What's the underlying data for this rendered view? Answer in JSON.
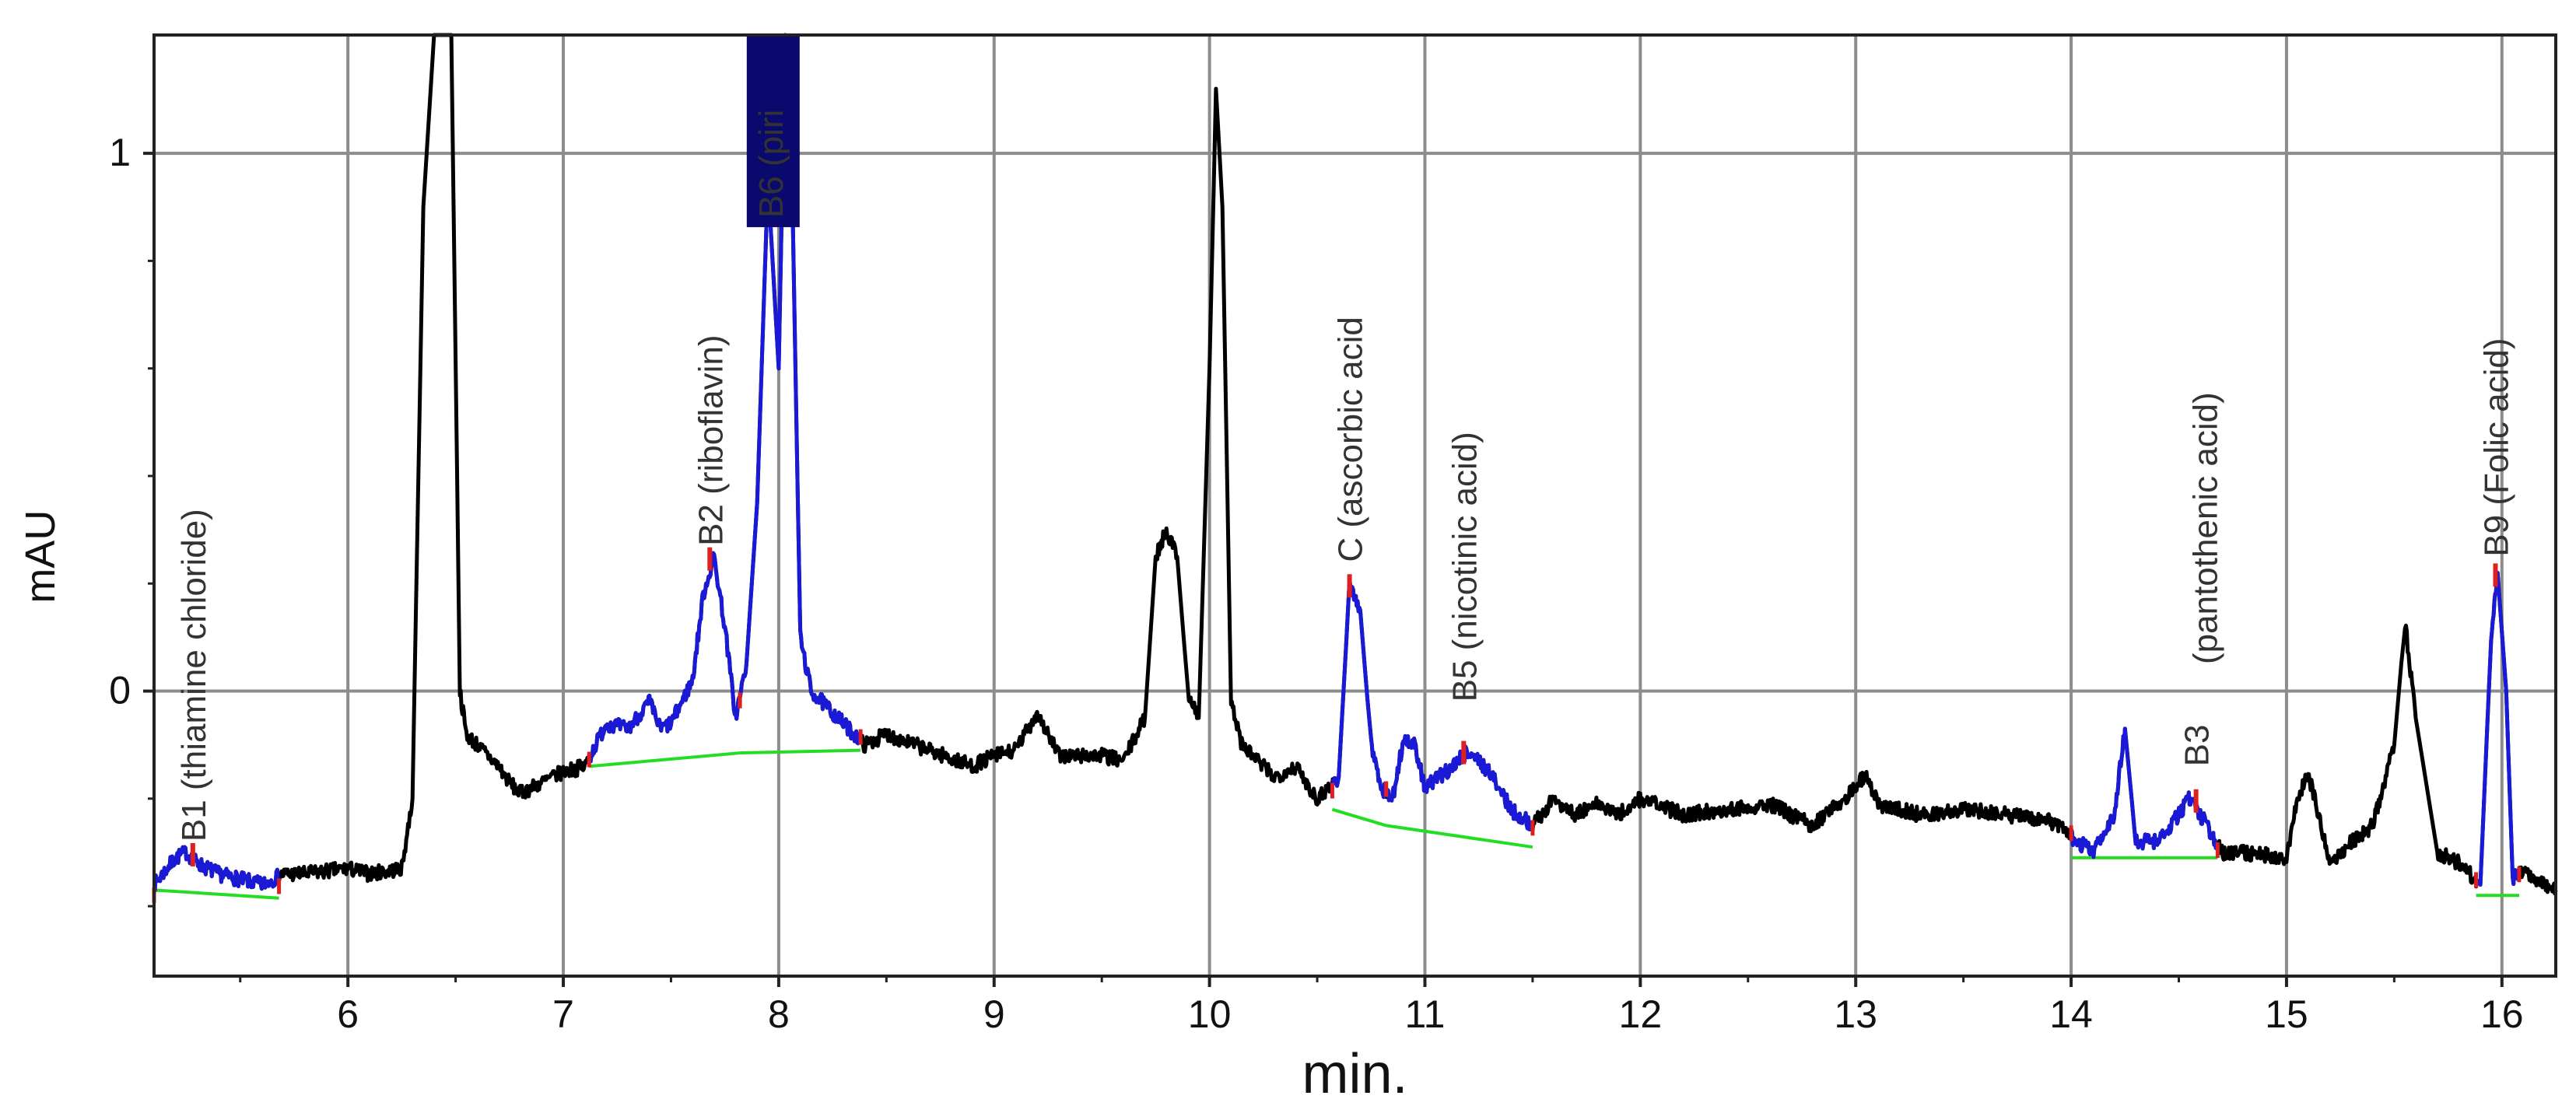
{
  "chart_data": {
    "type": "line",
    "xlabel": "min.",
    "ylabel": "mAU",
    "xlim": [
      5.1,
      16.25
    ],
    "ylim": [
      -0.53,
      1.22
    ],
    "x_ticks": [
      6,
      7,
      8,
      9,
      10,
      11,
      12,
      13,
      14,
      15,
      16
    ],
    "y_ticks": [
      0,
      1
    ],
    "grid": true,
    "colors": {
      "trace": "#000000",
      "peak_region": "#1a1ad6",
      "baseline": "#22dd22",
      "marker": "#e02020",
      "highlight_box": "#0a0a6e",
      "grid": "#8c8c8c"
    },
    "series": [
      {
        "points": [
          [
            5.1,
            -0.36
          ],
          [
            5.2,
            -0.31
          ],
          [
            5.25,
            -0.3
          ],
          [
            5.3,
            -0.32
          ],
          [
            5.4,
            -0.34
          ],
          [
            5.5,
            -0.35
          ],
          [
            5.6,
            -0.36
          ],
          [
            5.7,
            -0.34
          ],
          [
            5.8,
            -0.34
          ],
          [
            6.0,
            -0.33
          ],
          [
            6.1,
            -0.34
          ],
          [
            6.25,
            -0.33
          ],
          [
            6.3,
            -0.2
          ],
          [
            6.35,
            0.9
          ],
          [
            6.4,
            1.22
          ],
          [
            6.48,
            1.22
          ],
          [
            6.52,
            0.0
          ],
          [
            6.55,
            -0.08
          ],
          [
            6.6,
            -0.1
          ],
          [
            6.7,
            -0.14
          ],
          [
            6.75,
            -0.17
          ],
          [
            6.8,
            -0.19
          ],
          [
            6.9,
            -0.17
          ],
          [
            7.0,
            -0.15
          ],
          [
            7.1,
            -0.14
          ],
          [
            7.15,
            -0.1
          ],
          [
            7.2,
            -0.06
          ],
          [
            7.3,
            -0.07
          ],
          [
            7.4,
            -0.02
          ],
          [
            7.45,
            -0.07
          ],
          [
            7.5,
            -0.06
          ],
          [
            7.6,
            0.02
          ],
          [
            7.65,
            0.18
          ],
          [
            7.7,
            0.25
          ],
          [
            7.75,
            0.12
          ],
          [
            7.8,
            -0.05
          ],
          [
            7.85,
            0.05
          ],
          [
            7.9,
            0.35
          ],
          [
            7.95,
            0.95
          ],
          [
            8.0,
            0.6
          ],
          [
            8.03,
            1.22
          ],
          [
            8.06,
            1.0
          ],
          [
            8.1,
            0.1
          ],
          [
            8.15,
            0.0
          ],
          [
            8.2,
            -0.02
          ],
          [
            8.3,
            -0.06
          ],
          [
            8.4,
            -0.1
          ],
          [
            8.5,
            -0.08
          ],
          [
            8.7,
            -0.11
          ],
          [
            8.9,
            -0.14
          ],
          [
            9.0,
            -0.12
          ],
          [
            9.1,
            -0.11
          ],
          [
            9.2,
            -0.04
          ],
          [
            9.3,
            -0.12
          ],
          [
            9.5,
            -0.12
          ],
          [
            9.6,
            -0.13
          ],
          [
            9.7,
            -0.05
          ],
          [
            9.75,
            0.25
          ],
          [
            9.8,
            0.3
          ],
          [
            9.85,
            0.25
          ],
          [
            9.9,
            0.0
          ],
          [
            9.95,
            -0.05
          ],
          [
            10.0,
            0.6
          ],
          [
            10.03,
            1.12
          ],
          [
            10.06,
            0.9
          ],
          [
            10.1,
            -0.02
          ],
          [
            10.15,
            -0.1
          ],
          [
            10.3,
            -0.16
          ],
          [
            10.4,
            -0.14
          ],
          [
            10.5,
            -0.2
          ],
          [
            10.6,
            -0.16
          ],
          [
            10.65,
            0.2
          ],
          [
            10.7,
            0.15
          ],
          [
            10.75,
            -0.1
          ],
          [
            10.8,
            -0.18
          ],
          [
            10.85,
            -0.2
          ],
          [
            10.9,
            -0.09
          ],
          [
            10.95,
            -0.1
          ],
          [
            11.0,
            -0.18
          ],
          [
            11.1,
            -0.15
          ],
          [
            11.2,
            -0.11
          ],
          [
            11.3,
            -0.15
          ],
          [
            11.4,
            -0.22
          ],
          [
            11.5,
            -0.25
          ],
          [
            11.6,
            -0.2
          ],
          [
            11.7,
            -0.23
          ],
          [
            11.8,
            -0.21
          ],
          [
            11.9,
            -0.23
          ],
          [
            12.0,
            -0.2
          ],
          [
            12.2,
            -0.23
          ],
          [
            12.4,
            -0.22
          ],
          [
            12.6,
            -0.21
          ],
          [
            12.8,
            -0.25
          ],
          [
            13.0,
            -0.18
          ],
          [
            13.05,
            -0.15
          ],
          [
            13.1,
            -0.21
          ],
          [
            13.3,
            -0.23
          ],
          [
            13.5,
            -0.22
          ],
          [
            13.7,
            -0.23
          ],
          [
            13.9,
            -0.24
          ],
          [
            14.0,
            -0.27
          ],
          [
            14.1,
            -0.3
          ],
          [
            14.2,
            -0.23
          ],
          [
            14.25,
            -0.07
          ],
          [
            14.3,
            -0.28
          ],
          [
            14.4,
            -0.28
          ],
          [
            14.5,
            -0.23
          ],
          [
            14.55,
            -0.2
          ],
          [
            14.6,
            -0.23
          ],
          [
            14.7,
            -0.3
          ],
          [
            14.8,
            -0.3
          ],
          [
            15.0,
            -0.31
          ],
          [
            15.05,
            -0.2
          ],
          [
            15.1,
            -0.15
          ],
          [
            15.2,
            -0.32
          ],
          [
            15.3,
            -0.28
          ],
          [
            15.4,
            -0.25
          ],
          [
            15.5,
            -0.1
          ],
          [
            15.55,
            0.13
          ],
          [
            15.6,
            -0.05
          ],
          [
            15.7,
            -0.3
          ],
          [
            15.8,
            -0.32
          ],
          [
            15.9,
            -0.36
          ],
          [
            15.95,
            0.1
          ],
          [
            15.98,
            0.22
          ],
          [
            16.02,
            0.0
          ],
          [
            16.05,
            -0.35
          ],
          [
            16.1,
            -0.33
          ],
          [
            16.2,
            -0.36
          ],
          [
            16.25,
            -0.37
          ]
        ]
      }
    ],
    "peaks": [
      {
        "label": "B1 (thiamine chloride)",
        "x_start": 5.1,
        "x_end": 5.68,
        "apex_x": 5.28,
        "apex_y": -0.3,
        "baseline": [
          -0.37,
          -0.385
        ],
        "label_y": -0.28
      },
      {
        "label": "B2 (riboflavin)",
        "x_start": 7.12,
        "x_end": 7.82,
        "apex_x": 7.68,
        "apex_y": 0.25,
        "baseline": [
          -0.14,
          -0.115
        ],
        "label_y": 0.27
      },
      {
        "label": "B6 (piri",
        "x_start": 7.82,
        "x_end": 8.38,
        "apex_x": 7.96,
        "apex_y": 0.95,
        "baseline": [
          -0.115,
          -0.11
        ],
        "label_y": 0.88,
        "highlighted": true
      },
      {
        "label": "C (ascorbic acid",
        "x_start": 10.57,
        "x_end": 10.82,
        "apex_x": 10.65,
        "apex_y": 0.2,
        "baseline": [
          -0.22,
          -0.25
        ],
        "label_y": 0.24
      },
      {
        "label": "B5 (nicotinic acid)",
        "x_start": 10.82,
        "x_end": 11.5,
        "apex_x": 11.18,
        "apex_y": -0.11,
        "baseline": [
          -0.25,
          -0.29
        ],
        "label_y": -0.02
      },
      {
        "label": "B3",
        "x_start": 14.0,
        "x_end": 14.68,
        "apex_x": 14.58,
        "apex_y": -0.2,
        "baseline": [
          -0.31,
          -0.31
        ],
        "label_y": -0.14
      },
      {
        "label": "(pantothenic acid)",
        "x_start": 14.0,
        "x_end": 14.68,
        "apex_x": 14.62,
        "apex_y": -0.2,
        "baseline": [
          -0.31,
          -0.31
        ],
        "label_y": 0.05,
        "label_only": true
      },
      {
        "label": "B9 (Folic acid)",
        "x_start": 15.88,
        "x_end": 16.08,
        "apex_x": 15.97,
        "apex_y": 0.22,
        "baseline": [
          -0.38,
          -0.38
        ],
        "label_y": 0.25
      }
    ]
  }
}
